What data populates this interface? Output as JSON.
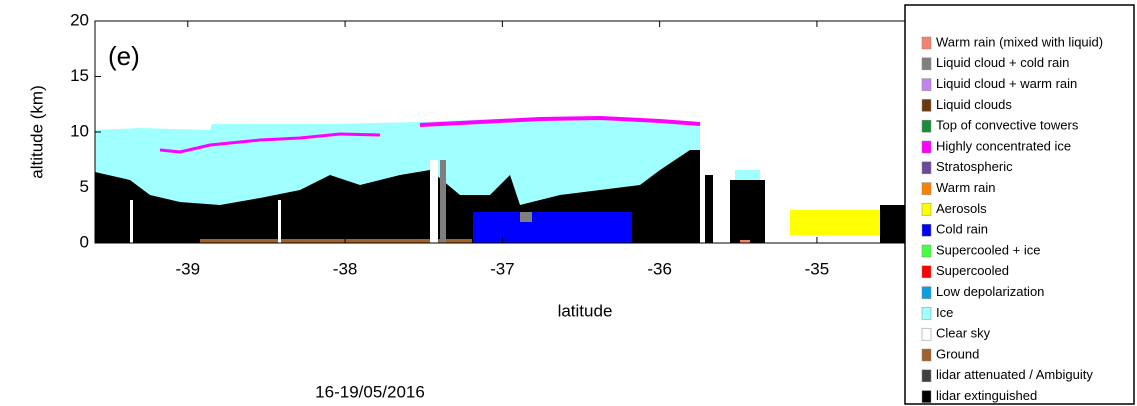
{
  "chart_data": {
    "type": "curtain",
    "panel_label": "(e)",
    "xlabel": "latitude",
    "ylabel": "altitude (km)",
    "footnote": "16-19/05/2016",
    "xlim": [
      -39.59,
      -34.44
    ],
    "xticks": [
      -39,
      -38,
      -37,
      -36,
      -35
    ],
    "ylim": [
      0,
      20
    ],
    "yticks": [
      0,
      5,
      10,
      15,
      20
    ],
    "classes": [
      {
        "name": "Warm rain (mixed with liquid)",
        "color": "#f4826e"
      },
      {
        "name": "Liquid cloud + cold rain",
        "color": "#7f7f7f"
      },
      {
        "name": "Liquid cloud + warm rain",
        "color": "#c084f0"
      },
      {
        "name": "Liquid clouds",
        "color": "#6a3a10"
      },
      {
        "name": "Top of convective towers",
        "color": "#1e8a3c"
      },
      {
        "name": "Highly concentrated ice",
        "color": "#ff00ff"
      },
      {
        "name": "Stratospheric",
        "color": "#6a4a9a"
      },
      {
        "name": "Warm rain",
        "color": "#ff8000"
      },
      {
        "name": "Aerosols",
        "color": "#ffff00"
      },
      {
        "name": "Cold rain",
        "color": "#0000ff"
      },
      {
        "name": "Supercooled + ice",
        "color": "#44ff44"
      },
      {
        "name": "Supercooled",
        "color": "#ff0000"
      },
      {
        "name": "Low depolarization",
        "color": "#0aa0e0"
      },
      {
        "name": "Ice",
        "color": "#a0ffff"
      },
      {
        "name": "Clear sky",
        "color": "#ffffff"
      },
      {
        "name": "Ground",
        "color": "#a0612a"
      },
      {
        "name": "lidar attenuated / Ambiguity",
        "color": "#404040"
      },
      {
        "name": "lidar extinguished",
        "color": "#000000"
      }
    ]
  }
}
